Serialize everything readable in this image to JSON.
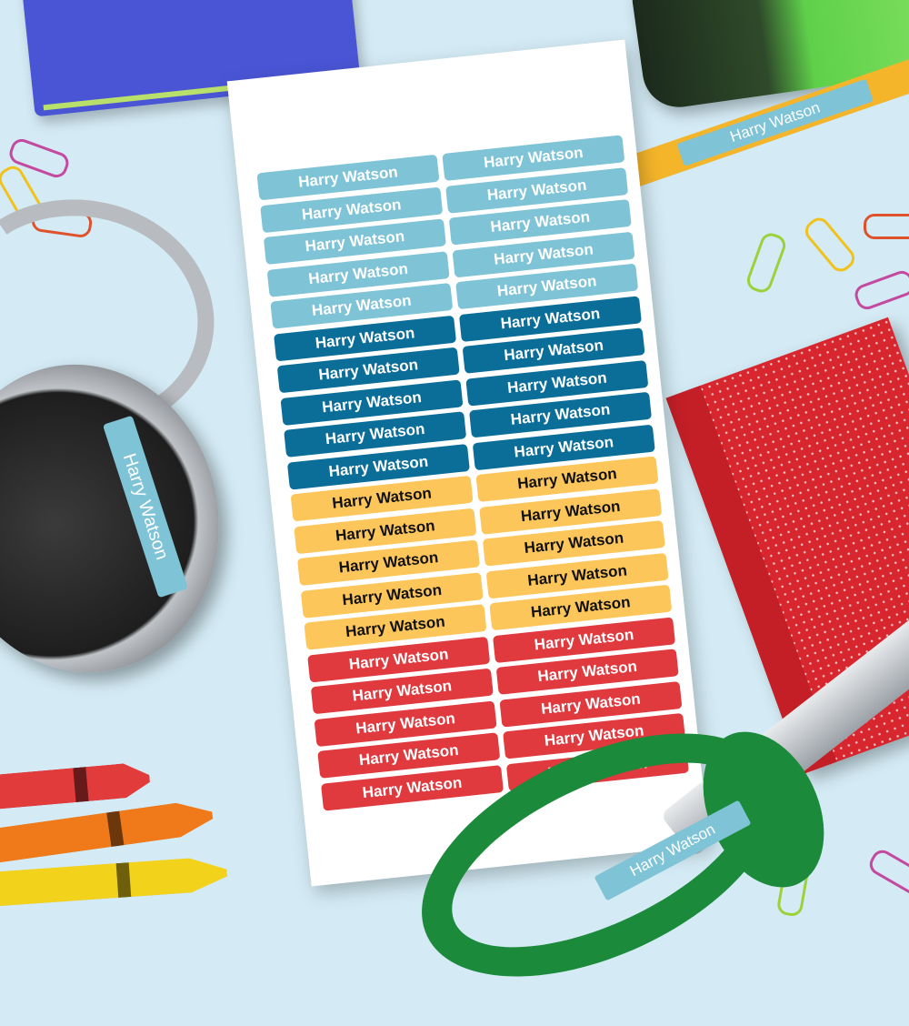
{
  "name": "Harry Watson",
  "colors": {
    "background": "#d4ebf5",
    "light_blue": "#7fc3d6",
    "dark_blue": "#0b6e99",
    "yellow": "#fdc65a",
    "red": "#e0393e"
  },
  "sheet": {
    "columns": 2,
    "groups": [
      {
        "color": "#7fc3d6",
        "text_color": "#ffffff",
        "count": 5
      },
      {
        "color": "#0b6e99",
        "text_color": "#ffffff",
        "count": 5
      },
      {
        "color": "#fdc65a",
        "text_color": "#111111",
        "count": 5
      },
      {
        "color": "#e0393e",
        "text_color": "#ffffff",
        "count": 5
      }
    ]
  },
  "props": {
    "pencil_label": "Harry Watson",
    "headphone_label": "Harry Watson",
    "scissors_label": "Harry Watson"
  }
}
